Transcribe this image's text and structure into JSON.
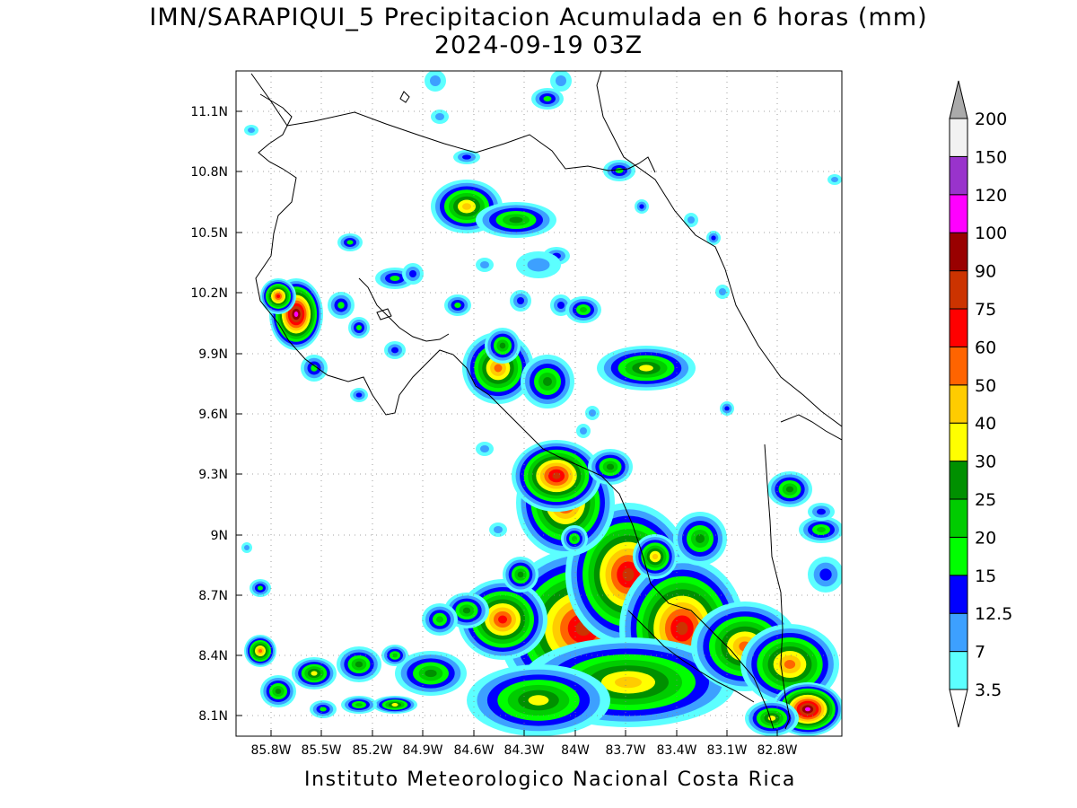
{
  "title": {
    "line1": "IMN/SARAPIQUI_5 Precipitacion Acumulada en 6 horas (mm)",
    "line2": "2024-09-19 03Z"
  },
  "footer": "Instituto Meteorologico Nacional Costa Rica",
  "map": {
    "y_ticks": [
      "11.1N",
      "10.8N",
      "10.5N",
      "10.2N",
      "9.9N",
      "9.6N",
      "9.3N",
      "9N",
      "8.7N",
      "8.4N",
      "8.1N"
    ],
    "x_ticks": [
      "85.8W",
      "85.5W",
      "85.2W",
      "84.9W",
      "84.6W",
      "84.3W",
      "84W",
      "83.7W",
      "83.4W",
      "83.1W",
      "82.8W"
    ],
    "grid": "dotted"
  },
  "colorbar": {
    "unit": "mm",
    "levels": [
      "3.5",
      "7",
      "12.5",
      "15",
      "20",
      "25",
      "30",
      "40",
      "50",
      "60",
      "75",
      "90",
      "100",
      "120",
      "150",
      "200"
    ],
    "colors": [
      "#5cffff",
      "#3da0ff",
      "#0000ff",
      "#00ff00",
      "#00cc00",
      "#009000",
      "#ffff00",
      "#ffcc00",
      "#ff6400",
      "#ff0000",
      "#cc3300",
      "#990000",
      "#ff00ff",
      "#9933cc",
      "#f2f2f2"
    ],
    "top_arrow_color": "#aaaaaa",
    "bottom_arrow_color": "#ffffff"
  }
}
